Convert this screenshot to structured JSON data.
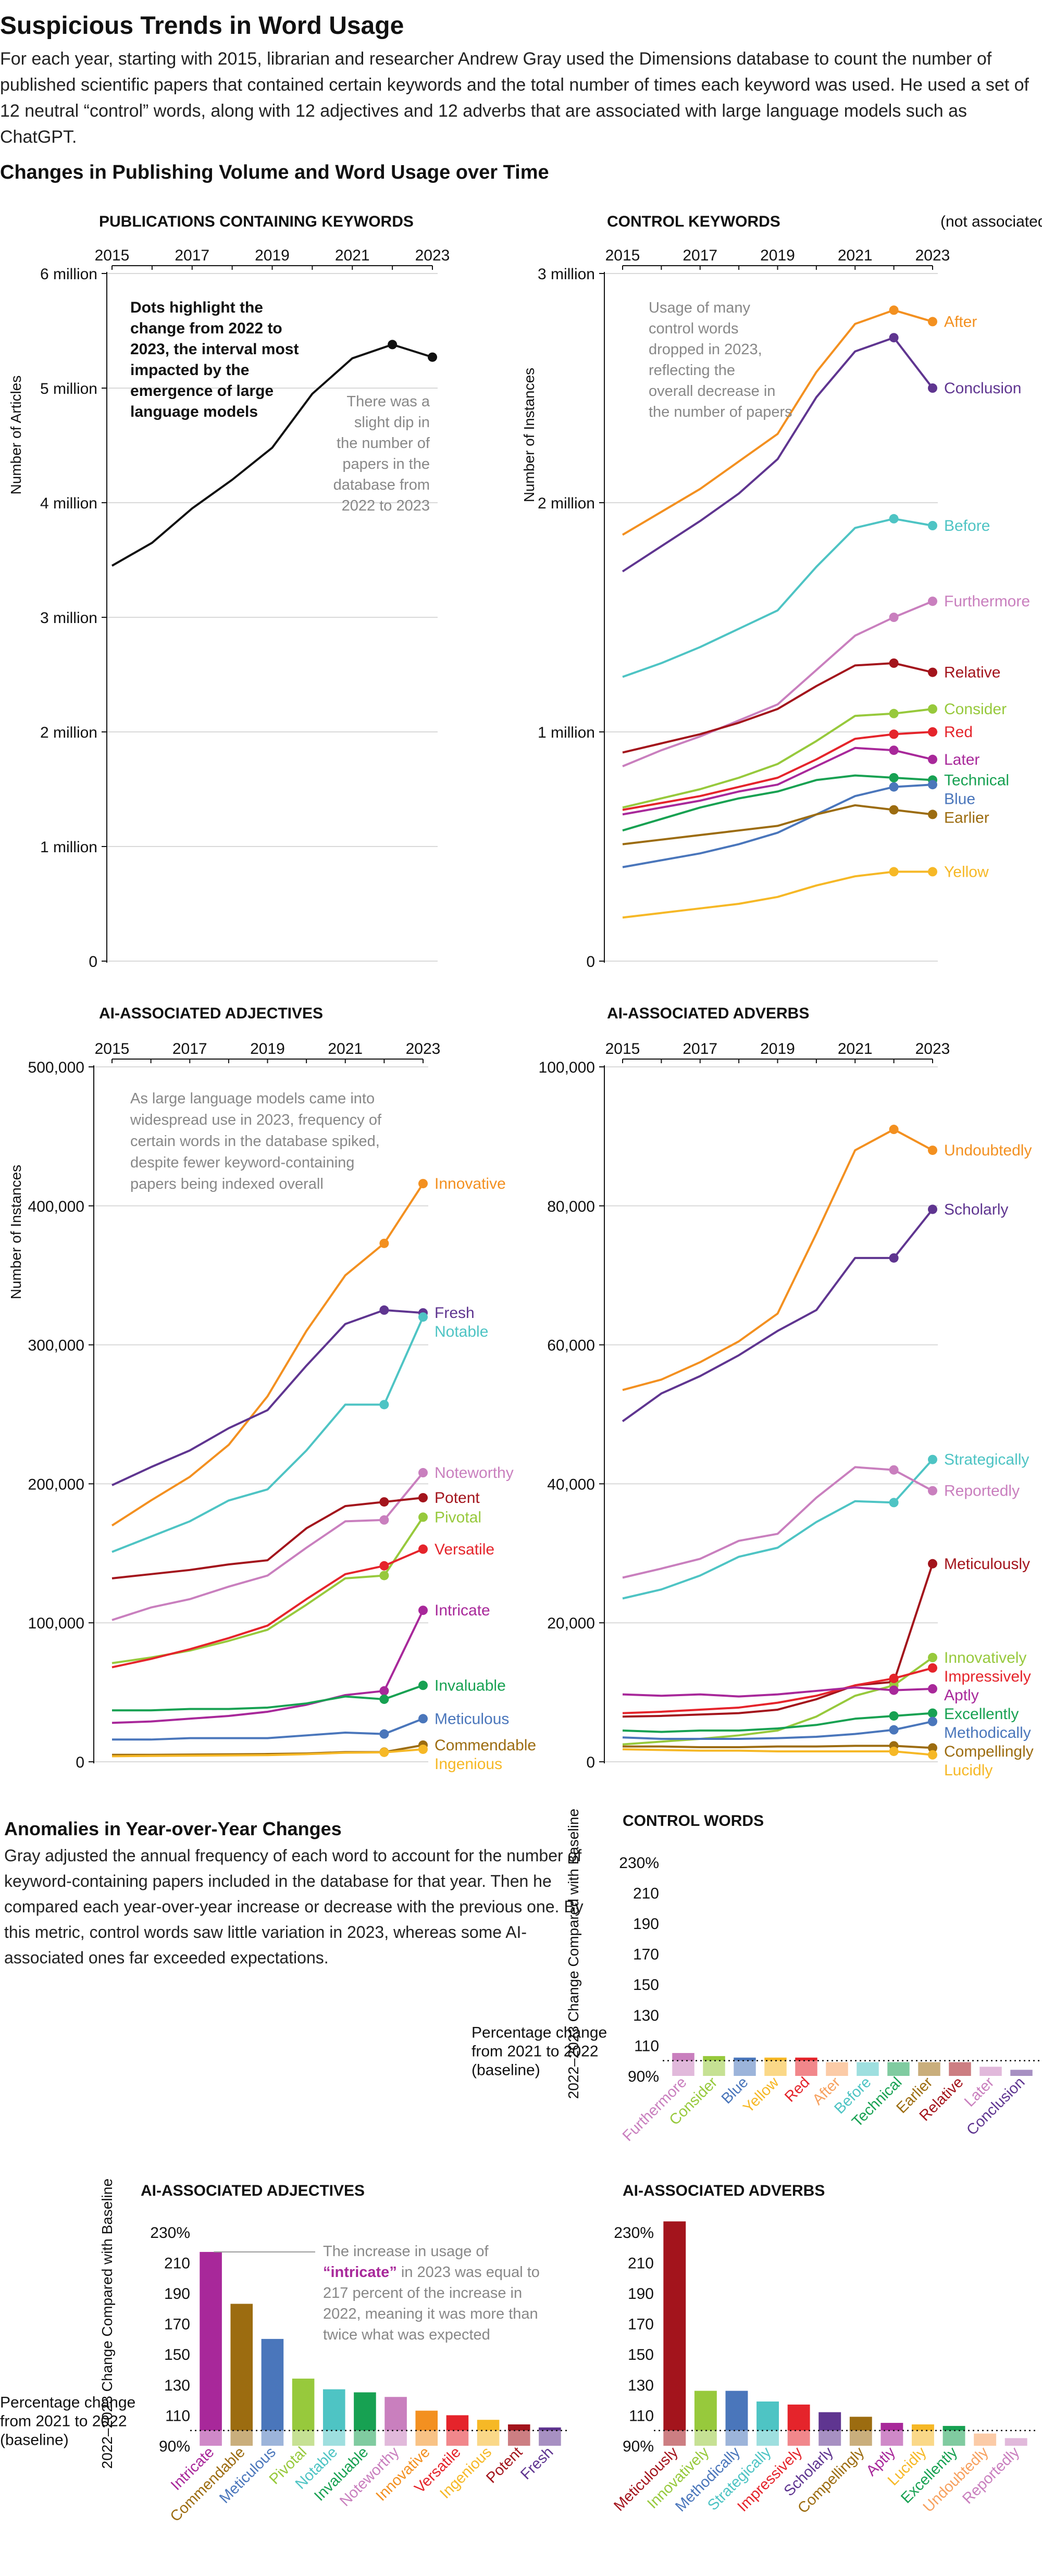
{
  "header": {
    "title": "Suspicious Trends in Word Usage",
    "intro": "For each year, starting with 2015, librarian and researcher Andrew Gray used the Dimensions database to count the number of published scientific papers that contained certain keywords and the total number of times each keyword was used. He used a set of 12 neutral “control” words, along with 12 adjectives and 12 adverbs that are associated with large language models such as ChatGPT.",
    "section_heading": "Changes in Publishing Volume and Word Usage over Time"
  },
  "anomalies": {
    "heading": "Anomalies in Year-over-Year Changes",
    "text": "Gray adjusted the annual frequency of each word to account for the number of keyword-containing papers included in the database for that year. Then he compared each year-over-year increase or decrease with the previous one. By this metric, control words saw little variation in 2023, whereas some AI-associated ones far exceeded expectations."
  },
  "colors": {
    "black": "#111111",
    "orange": "#f39020",
    "purple": "#5f3590",
    "teal": "#4ec4c4",
    "pink": "#c97fbe",
    "darkred": "#a3141c",
    "lime": "#97c93c",
    "red": "#e5242b",
    "magenta": "#a8289a",
    "green": "#17a152",
    "blue": "#4a76bb",
    "brown": "#9c6c10",
    "yellow": "#f6b826",
    "peach": "#f7a15f"
  },
  "chart_data": [
    {
      "id": "publications",
      "type": "line",
      "title": "PUBLICATIONS CONTAINING KEYWORDS",
      "subtitle": "",
      "ylabel": "Number of Articles",
      "x": [
        2015,
        2016,
        2017,
        2018,
        2019,
        2020,
        2021,
        2022,
        2023
      ],
      "xticks": [
        "2015",
        "2017",
        "2019",
        "2021",
        "2023"
      ],
      "ylim": [
        0,
        6000000
      ],
      "yticks": [
        "0",
        "1 million",
        "2 million",
        "3 million",
        "4 million",
        "5 million",
        "6 million"
      ],
      "annotations": [
        "Dots highlight the change from 2022 to 2023, the interval most impacted by the emergence of large language models",
        "There was a slight dip in the number of papers in the database from 2022 to 2023"
      ],
      "series": [
        {
          "name": "",
          "color": "black",
          "values": [
            3450000,
            3650000,
            3950000,
            4200000,
            4480000,
            4950000,
            5260000,
            5380000,
            5270000
          ]
        }
      ]
    },
    {
      "id": "control",
      "type": "line",
      "title": "CONTROL KEYWORDS",
      "subtitle": "(not associated with AI)",
      "ylabel": "Number of Instances",
      "x": [
        2015,
        2016,
        2017,
        2018,
        2019,
        2020,
        2021,
        2022,
        2023
      ],
      "xticks": [
        "2015",
        "2017",
        "2019",
        "2021",
        "2023"
      ],
      "ylim": [
        0,
        3000000
      ],
      "yticks": [
        "0",
        "1 million",
        "2 million",
        "3 million"
      ],
      "annotations": [
        "Usage of many control words dropped in 2023, reflecting the overall decrease in the number of papers"
      ],
      "series": [
        {
          "name": "After",
          "color": "orange",
          "values": [
            1860000,
            1960000,
            2060000,
            2180000,
            2300000,
            2570000,
            2780000,
            2840000,
            2790000
          ]
        },
        {
          "name": "Conclusion",
          "color": "purple",
          "values": [
            1700000,
            1810000,
            1920000,
            2040000,
            2190000,
            2460000,
            2660000,
            2720000,
            2500000
          ]
        },
        {
          "name": "Before",
          "color": "teal",
          "values": [
            1240000,
            1300000,
            1370000,
            1450000,
            1530000,
            1720000,
            1890000,
            1930000,
            1900000
          ]
        },
        {
          "name": "Furthermore",
          "color": "pink",
          "values": [
            850000,
            920000,
            980000,
            1050000,
            1120000,
            1270000,
            1420000,
            1500000,
            1570000
          ]
        },
        {
          "name": "Relative",
          "color": "darkred",
          "values": [
            910000,
            950000,
            990000,
            1040000,
            1100000,
            1200000,
            1290000,
            1300000,
            1260000
          ]
        },
        {
          "name": "Consider",
          "color": "lime",
          "values": [
            670000,
            710000,
            750000,
            800000,
            860000,
            960000,
            1070000,
            1080000,
            1100000
          ]
        },
        {
          "name": "Red",
          "color": "red",
          "values": [
            660000,
            690000,
            720000,
            760000,
            800000,
            880000,
            970000,
            990000,
            1000000
          ]
        },
        {
          "name": "Later",
          "color": "magenta",
          "values": [
            640000,
            670000,
            700000,
            740000,
            770000,
            850000,
            930000,
            920000,
            880000
          ]
        },
        {
          "name": "Technical",
          "color": "green",
          "values": [
            570000,
            620000,
            670000,
            710000,
            740000,
            790000,
            810000,
            800000,
            790000
          ]
        },
        {
          "name": "Blue",
          "color": "blue",
          "values": [
            410000,
            440000,
            470000,
            510000,
            560000,
            640000,
            720000,
            760000,
            770000
          ]
        },
        {
          "name": "Earlier",
          "color": "brown",
          "values": [
            510000,
            530000,
            550000,
            570000,
            590000,
            640000,
            680000,
            660000,
            640000
          ]
        },
        {
          "name": "Yellow",
          "color": "yellow",
          "values": [
            190000,
            210000,
            230000,
            250000,
            280000,
            330000,
            370000,
            390000,
            390000
          ]
        }
      ]
    },
    {
      "id": "adjectives",
      "type": "line",
      "title": "AI-ASSOCIATED ADJECTIVES",
      "subtitle": "",
      "ylabel": "Number of Instances",
      "x": [
        2015,
        2016,
        2017,
        2018,
        2019,
        2020,
        2021,
        2022,
        2023
      ],
      "xticks": [
        "2015",
        "2017",
        "2019",
        "2021",
        "2023"
      ],
      "ylim": [
        0,
        500000
      ],
      "yticks": [
        "0",
        "100,000",
        "200,000",
        "300,000",
        "400,000",
        "500,000"
      ],
      "annotations": [
        "As large language models came into widespread use in 2023, frequency of certain words in the database spiked, despite fewer keyword-containing papers being indexed overall"
      ],
      "series": [
        {
          "name": "Innovative",
          "color": "orange",
          "values": [
            170000,
            188000,
            205000,
            228000,
            263000,
            310000,
            350000,
            373000,
            416000
          ]
        },
        {
          "name": "Fresh",
          "color": "purple",
          "values": [
            199000,
            212000,
            224000,
            240000,
            253000,
            285000,
            315000,
            325000,
            323000
          ]
        },
        {
          "name": "Notable",
          "color": "teal",
          "values": [
            151000,
            162000,
            173000,
            188000,
            196000,
            224000,
            257000,
            257000,
            320000
          ]
        },
        {
          "name": "Noteworthy",
          "color": "pink",
          "values": [
            102000,
            111000,
            117000,
            126000,
            134000,
            154000,
            173000,
            174000,
            208000
          ]
        },
        {
          "name": "Potent",
          "color": "darkred",
          "values": [
            132000,
            135000,
            138000,
            142000,
            145000,
            168000,
            184000,
            187000,
            190000
          ]
        },
        {
          "name": "Pivotal",
          "color": "lime",
          "values": [
            71000,
            75000,
            80000,
            87000,
            95000,
            113000,
            132000,
            134000,
            176000
          ]
        },
        {
          "name": "Versatile",
          "color": "red",
          "values": [
            68000,
            74000,
            81000,
            89000,
            98000,
            117000,
            135000,
            141000,
            153000
          ]
        },
        {
          "name": "Intricate",
          "color": "magenta",
          "values": [
            28000,
            29000,
            31000,
            33000,
            36000,
            41000,
            48000,
            51000,
            109000
          ]
        },
        {
          "name": "Invaluable",
          "color": "green",
          "values": [
            37000,
            37000,
            38000,
            38000,
            39000,
            42000,
            47000,
            45000,
            55000
          ]
        },
        {
          "name": "Meticulous",
          "color": "blue",
          "values": [
            16000,
            16000,
            17000,
            17000,
            17000,
            19000,
            21000,
            20000,
            31000
          ]
        },
        {
          "name": "Commendable",
          "color": "brown",
          "values": [
            5000,
            5000,
            5200,
            5400,
            5600,
            6000,
            7000,
            7000,
            12000
          ]
        },
        {
          "name": "Ingenious",
          "color": "yellow",
          "values": [
            4000,
            4200,
            4400,
            4600,
            4800,
            5500,
            6500,
            6800,
            9000
          ]
        }
      ]
    },
    {
      "id": "adverbs",
      "type": "line",
      "title": "AI-ASSOCIATED ADVERBS",
      "subtitle": "",
      "ylabel": "",
      "x": [
        2015,
        2016,
        2017,
        2018,
        2019,
        2020,
        2021,
        2022,
        2023
      ],
      "xticks": [
        "2015",
        "2017",
        "2019",
        "2021",
        "2023"
      ],
      "ylim": [
        0,
        100000
      ],
      "yticks": [
        "0",
        "20,000",
        "40,000",
        "60,000",
        "80,000",
        "100,000"
      ],
      "annotations": [],
      "series": [
        {
          "name": "Undoubtedly",
          "color": "orange",
          "values": [
            53500,
            55000,
            57500,
            60500,
            64500,
            76000,
            88000,
            91000,
            88000
          ]
        },
        {
          "name": "Scholarly",
          "color": "purple",
          "values": [
            49000,
            53000,
            55500,
            58500,
            62000,
            65000,
            72500,
            72500,
            79500
          ]
        },
        {
          "name": "Strategically",
          "color": "teal",
          "values": [
            23500,
            24800,
            26800,
            29500,
            30800,
            34500,
            37500,
            37300,
            43500
          ]
        },
        {
          "name": "Reportedly",
          "color": "pink",
          "values": [
            26500,
            27800,
            29200,
            31800,
            32800,
            38000,
            42400,
            42000,
            39000
          ]
        },
        {
          "name": "Meticulously",
          "color": "darkred",
          "values": [
            6500,
            6600,
            6800,
            7000,
            7500,
            9000,
            11000,
            11500,
            28500
          ]
        },
        {
          "name": "Innovatively",
          "color": "lime",
          "values": [
            2500,
            2900,
            3300,
            3800,
            4500,
            6500,
            9500,
            11000,
            15000
          ]
        },
        {
          "name": "Impressively",
          "color": "red",
          "values": [
            7000,
            7200,
            7500,
            7800,
            8500,
            9500,
            11000,
            12000,
            13500
          ]
        },
        {
          "name": "Aptly",
          "color": "magenta",
          "values": [
            9700,
            9500,
            9700,
            9400,
            9700,
            10200,
            10700,
            10300,
            10500
          ]
        },
        {
          "name": "Excellently",
          "color": "green",
          "values": [
            4500,
            4300,
            4500,
            4500,
            4800,
            5300,
            6200,
            6600,
            7000
          ]
        },
        {
          "name": "Methodically",
          "color": "blue",
          "values": [
            3500,
            3300,
            3300,
            3300,
            3400,
            3600,
            4000,
            4600,
            5800
          ]
        },
        {
          "name": "Compellingly",
          "color": "brown",
          "values": [
            2200,
            2200,
            2100,
            2100,
            2200,
            2200,
            2300,
            2300,
            2000
          ]
        },
        {
          "name": "Lucidly",
          "color": "yellow",
          "values": [
            1800,
            1700,
            1600,
            1600,
            1500,
            1500,
            1500,
            1500,
            1000
          ]
        }
      ]
    },
    {
      "id": "control-words-bars",
      "type": "bar",
      "title": "CONTROL WORDS",
      "ylabel": "2022–2023 Change Compared with Baseline",
      "baseline_label": "Percentage change from 2021 to 2022 (baseline)",
      "ylim": [
        90,
        230
      ],
      "yticks": [
        "90%",
        "110",
        "130",
        "150",
        "170",
        "190",
        "210",
        "230%"
      ],
      "annotations": [],
      "categories": [
        "Furthermore",
        "Consider",
        "Blue",
        "Yellow",
        "Red",
        "After",
        "Before",
        "Technical",
        "Earlier",
        "Relative",
        "Later",
        "Conclusion"
      ],
      "colors": [
        "pink",
        "lime",
        "blue",
        "yellow",
        "red",
        "peach",
        "teal",
        "green",
        "brown",
        "darkred",
        "pink",
        "purple"
      ],
      "values": [
        105,
        103,
        102,
        102,
        102,
        99,
        99,
        99,
        99,
        99,
        96,
        94
      ]
    },
    {
      "id": "adjectives-bars",
      "type": "bar",
      "title": "AI-ASSOCIATED ADJECTIVES",
      "ylabel": "2022–2023 Change Compared with Baseline",
      "baseline_label": "Percentage change from 2021 to 2022 (baseline)",
      "ylim": [
        90,
        230
      ],
      "yticks": [
        "90%",
        "110",
        "130",
        "150",
        "170",
        "190",
        "210",
        "230%"
      ],
      "annotations": [
        "The increase in usage of",
        "“intricate”",
        " in 2023 was equal to 217 percent of the increase in 2022, meaning it was more than twice what was expected"
      ],
      "categories": [
        "Intricate",
        "Commendable",
        "Meticulous",
        "Pivotal",
        "Notable",
        "Invaluable",
        "Noteworthy",
        "Innovative",
        "Versatile",
        "Ingenious",
        "Potent",
        "Fresh"
      ],
      "colors": [
        "magenta",
        "brown",
        "blue",
        "lime",
        "teal",
        "green",
        "pink",
        "orange",
        "red",
        "yellow",
        "darkred",
        "purple"
      ],
      "values": [
        217,
        183,
        160,
        134,
        127,
        125,
        122,
        113,
        110,
        107,
        104,
        102
      ]
    },
    {
      "id": "adverbs-bars",
      "type": "bar",
      "title": "AI-ASSOCIATED ADVERBS",
      "ylabel": "",
      "baseline_label": "",
      "ylim": [
        90,
        230
      ],
      "yticks": [
        "90%",
        "110",
        "130",
        "150",
        "170",
        "190",
        "210",
        "230%"
      ],
      "annotations": [],
      "categories": [
        "Meticulously",
        "Innovatively",
        "Methodically",
        "Strategically",
        "Impressively",
        "Scholarly",
        "Compellingly",
        "Aptly",
        "Lucidly",
        "Excellently",
        "Undoubtedly",
        "Reportedly"
      ],
      "colors": [
        "darkred",
        "lime",
        "blue",
        "teal",
        "red",
        "purple",
        "brown",
        "magenta",
        "yellow",
        "green",
        "peach",
        "pink"
      ],
      "values": [
        237,
        126,
        126,
        119,
        117,
        112,
        109,
        105,
        104,
        103,
        98,
        95
      ]
    }
  ]
}
